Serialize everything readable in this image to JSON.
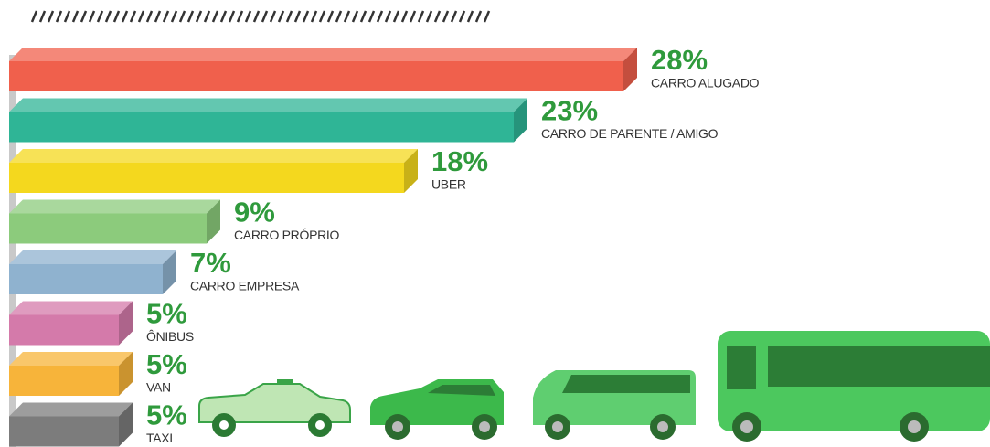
{
  "chart_data": {
    "type": "bar",
    "categories": [
      "CARRO ALUGADO",
      "CARRO DE PARENTE / AMIGO",
      "UBER",
      "CARRO PRÓPRIO",
      "CARRO EMPRESA",
      "ÔNIBUS",
      "VAN",
      "TAXI"
    ],
    "values": [
      28,
      23,
      18,
      9,
      7,
      5,
      5,
      5
    ],
    "value_labels": [
      "28%",
      "23%",
      "18%",
      "9%",
      "7%",
      "5%",
      "5%",
      "5%"
    ],
    "colors": [
      "#f0604c",
      "#2fb596",
      "#f4d81e",
      "#8ccb7c",
      "#8fb2cf",
      "#d47aaa",
      "#f7b43a",
      "#7c7c7c"
    ]
  }
}
